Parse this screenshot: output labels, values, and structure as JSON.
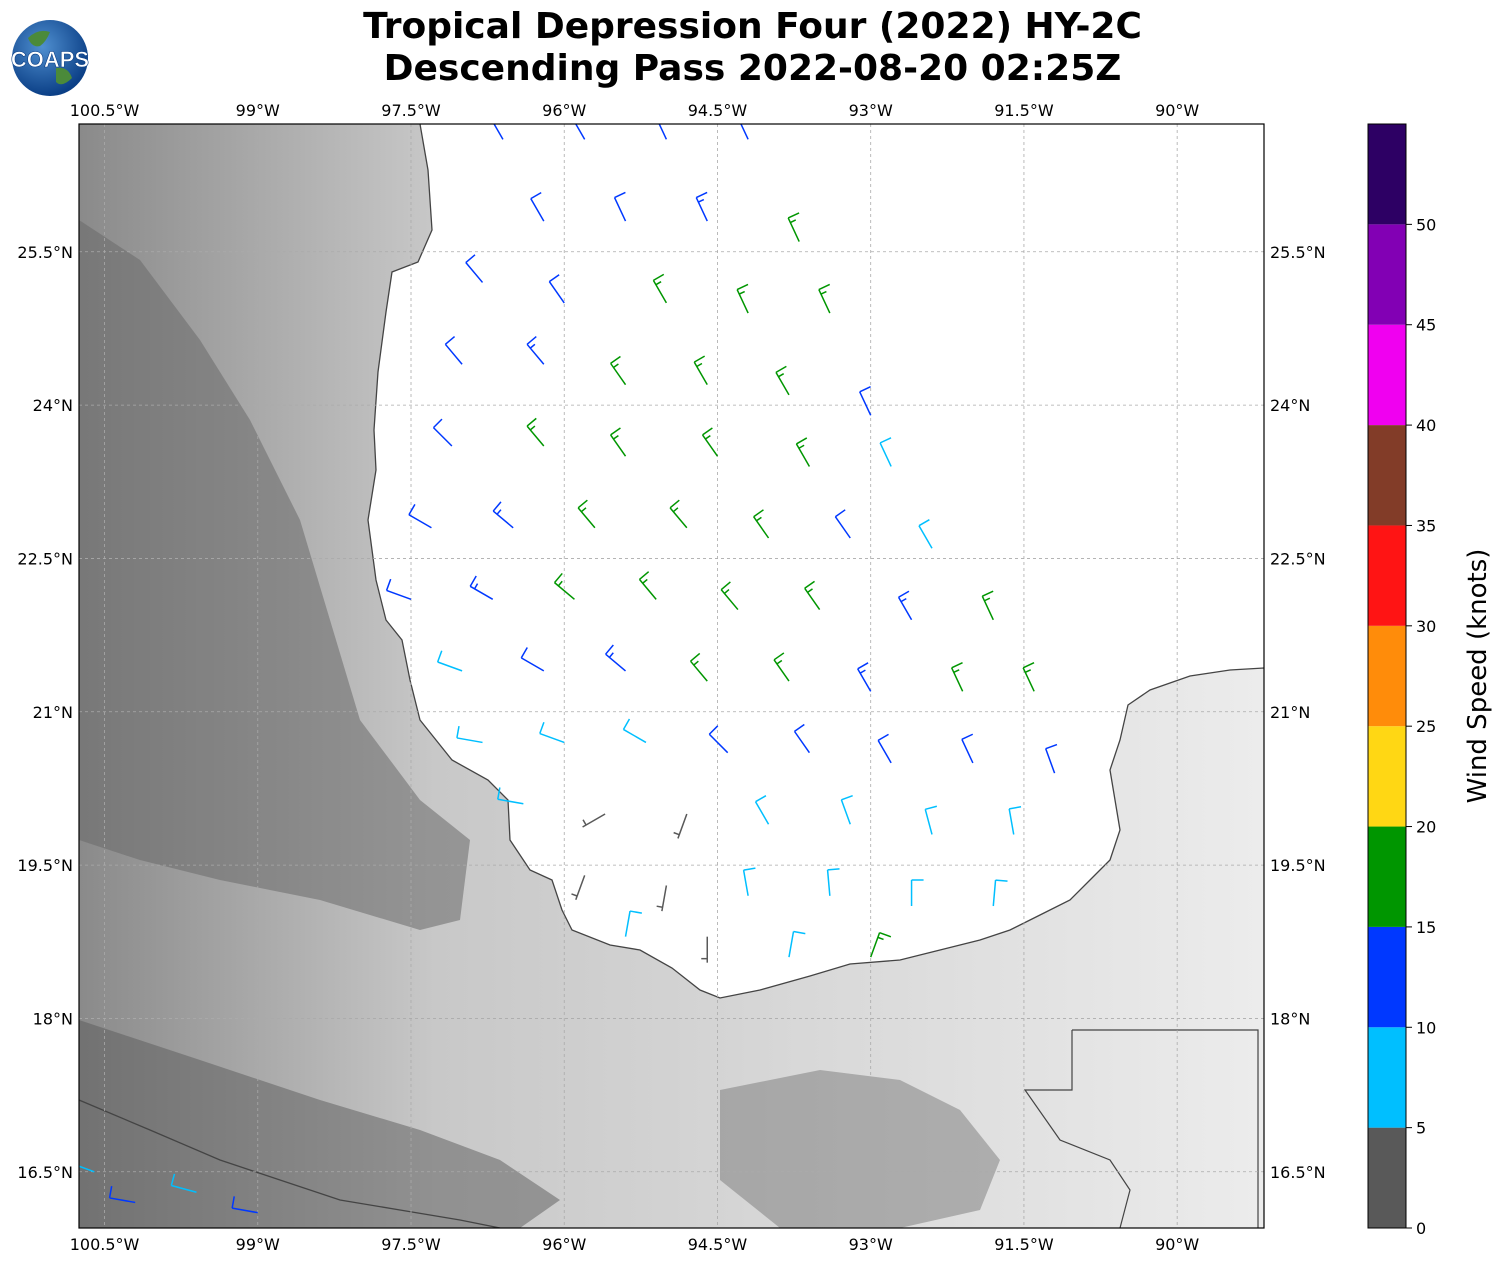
{
  "title": {
    "line1": "Tropical Depression Four (2022) HY-2C",
    "line2": "Descending Pass 2022-08-20 02:25Z"
  },
  "logo": {
    "text": "COAPS"
  },
  "map": {
    "lon_range": [
      -100.75,
      -89.15
    ],
    "lat_range": [
      15.95,
      26.75
    ],
    "lon_ticks": [
      "100.5°W",
      "99°W",
      "97.5°W",
      "96°W",
      "94.5°W",
      "93°W",
      "91.5°W",
      "90°W"
    ],
    "lat_ticks": [
      "25.5°N",
      "24°N",
      "22.5°N",
      "21°N",
      "19.5°N",
      "18°N",
      "16.5°N"
    ],
    "gridlines": true,
    "background": "grayscale terrain"
  },
  "colorbar": {
    "label": "Wind Speed (knots)",
    "ticks": [
      "0",
      "5",
      "10",
      "15",
      "20",
      "25",
      "30",
      "35",
      "40",
      "45",
      "50"
    ],
    "bins": [
      {
        "min": 0,
        "max": 5,
        "color": "#595959"
      },
      {
        "min": 5,
        "max": 10,
        "color": "#00bfff"
      },
      {
        "min": 10,
        "max": 15,
        "color": "#0038ff"
      },
      {
        "min": 15,
        "max": 20,
        "color": "#009600"
      },
      {
        "min": 20,
        "max": 25,
        "color": "#ffd714"
      },
      {
        "min": 25,
        "max": 30,
        "color": "#ff8c0a"
      },
      {
        "min": 30,
        "max": 35,
        "color": "#ff1414"
      },
      {
        "min": 35,
        "max": 40,
        "color": "#823c28"
      },
      {
        "min": 40,
        "max": 45,
        "color": "#f000f0"
      },
      {
        "min": 45,
        "max": 50,
        "color": "#8200b4"
      },
      {
        "min": 50,
        "max": 55,
        "color": "#2d0064"
      }
    ]
  },
  "wind_barbs": {
    "units": "knots",
    "observations": [
      {
        "lon": -96.6,
        "lat": 26.6,
        "speed": 12,
        "dir": 330
      },
      {
        "lon": -95.8,
        "lat": 26.6,
        "speed": 12,
        "dir": 330
      },
      {
        "lon": -95.0,
        "lat": 26.6,
        "speed": 12,
        "dir": 335
      },
      {
        "lon": -94.2,
        "lat": 26.6,
        "speed": 12,
        "dir": 335
      },
      {
        "lon": -96.2,
        "lat": 25.8,
        "speed": 12,
        "dir": 330
      },
      {
        "lon": -95.4,
        "lat": 25.8,
        "speed": 12,
        "dir": 335
      },
      {
        "lon": -94.6,
        "lat": 25.8,
        "speed": 14,
        "dir": 335
      },
      {
        "lon": -93.7,
        "lat": 25.6,
        "speed": 16,
        "dir": 335
      },
      {
        "lon": -96.8,
        "lat": 25.2,
        "speed": 12,
        "dir": 320
      },
      {
        "lon": -96.0,
        "lat": 25.0,
        "speed": 12,
        "dir": 325
      },
      {
        "lon": -95.0,
        "lat": 25.0,
        "speed": 16,
        "dir": 330
      },
      {
        "lon": -94.2,
        "lat": 24.9,
        "speed": 17,
        "dir": 335
      },
      {
        "lon": -93.4,
        "lat": 24.9,
        "speed": 17,
        "dir": 335
      },
      {
        "lon": -97.0,
        "lat": 24.4,
        "speed": 12,
        "dir": 320
      },
      {
        "lon": -96.2,
        "lat": 24.4,
        "speed": 14,
        "dir": 320
      },
      {
        "lon": -95.4,
        "lat": 24.2,
        "speed": 16,
        "dir": 325
      },
      {
        "lon": -94.6,
        "lat": 24.2,
        "speed": 17,
        "dir": 330
      },
      {
        "lon": -93.8,
        "lat": 24.1,
        "speed": 17,
        "dir": 330
      },
      {
        "lon": -93.0,
        "lat": 23.9,
        "speed": 12,
        "dir": 335
      },
      {
        "lon": -97.1,
        "lat": 23.6,
        "speed": 12,
        "dir": 315
      },
      {
        "lon": -96.2,
        "lat": 23.6,
        "speed": 16,
        "dir": 320
      },
      {
        "lon": -95.4,
        "lat": 23.5,
        "speed": 17,
        "dir": 325
      },
      {
        "lon": -94.5,
        "lat": 23.5,
        "speed": 17,
        "dir": 325
      },
      {
        "lon": -93.6,
        "lat": 23.4,
        "speed": 16,
        "dir": 330
      },
      {
        "lon": -92.8,
        "lat": 23.4,
        "speed": 8,
        "dir": 335
      },
      {
        "lon": -97.3,
        "lat": 22.8,
        "speed": 12,
        "dir": 300
      },
      {
        "lon": -96.5,
        "lat": 22.8,
        "speed": 14,
        "dir": 310
      },
      {
        "lon": -95.7,
        "lat": 22.8,
        "speed": 17,
        "dir": 320
      },
      {
        "lon": -94.8,
        "lat": 22.8,
        "speed": 17,
        "dir": 320
      },
      {
        "lon": -94.0,
        "lat": 22.7,
        "speed": 17,
        "dir": 325
      },
      {
        "lon": -93.2,
        "lat": 22.7,
        "speed": 12,
        "dir": 325
      },
      {
        "lon": -92.4,
        "lat": 22.6,
        "speed": 8,
        "dir": 330
      },
      {
        "lon": -97.5,
        "lat": 22.1,
        "speed": 12,
        "dir": 290
      },
      {
        "lon": -96.7,
        "lat": 22.1,
        "speed": 13,
        "dir": 300
      },
      {
        "lon": -95.9,
        "lat": 22.1,
        "speed": 16,
        "dir": 310
      },
      {
        "lon": -95.1,
        "lat": 22.1,
        "speed": 17,
        "dir": 320
      },
      {
        "lon": -94.3,
        "lat": 22.0,
        "speed": 17,
        "dir": 320
      },
      {
        "lon": -93.5,
        "lat": 22.0,
        "speed": 16,
        "dir": 325
      },
      {
        "lon": -92.6,
        "lat": 21.9,
        "speed": 14,
        "dir": 330
      },
      {
        "lon": -91.8,
        "lat": 21.9,
        "speed": 17,
        "dir": 335
      },
      {
        "lon": -97.0,
        "lat": 21.4,
        "speed": 8,
        "dir": 290
      },
      {
        "lon": -96.2,
        "lat": 21.4,
        "speed": 12,
        "dir": 300
      },
      {
        "lon": -95.4,
        "lat": 21.4,
        "speed": 13,
        "dir": 310
      },
      {
        "lon": -94.6,
        "lat": 21.3,
        "speed": 16,
        "dir": 320
      },
      {
        "lon": -93.8,
        "lat": 21.3,
        "speed": 17,
        "dir": 325
      },
      {
        "lon": -93.0,
        "lat": 21.2,
        "speed": 14,
        "dir": 330
      },
      {
        "lon": -92.1,
        "lat": 21.2,
        "speed": 17,
        "dir": 335
      },
      {
        "lon": -91.4,
        "lat": 21.2,
        "speed": 17,
        "dir": 335
      },
      {
        "lon": -96.8,
        "lat": 20.7,
        "speed": 8,
        "dir": 280
      },
      {
        "lon": -96.0,
        "lat": 20.7,
        "speed": 8,
        "dir": 290
      },
      {
        "lon": -95.2,
        "lat": 20.7,
        "speed": 9,
        "dir": 300
      },
      {
        "lon": -94.4,
        "lat": 20.6,
        "speed": 12,
        "dir": 315
      },
      {
        "lon": -93.6,
        "lat": 20.6,
        "speed": 12,
        "dir": 325
      },
      {
        "lon": -92.8,
        "lat": 20.5,
        "speed": 12,
        "dir": 330
      },
      {
        "lon": -92.0,
        "lat": 20.5,
        "speed": 12,
        "dir": 335
      },
      {
        "lon": -91.2,
        "lat": 20.4,
        "speed": 12,
        "dir": 340
      },
      {
        "lon": -96.4,
        "lat": 20.1,
        "speed": 8,
        "dir": 280
      },
      {
        "lon": -95.6,
        "lat": 20.0,
        "speed": 4,
        "dir": 240
      },
      {
        "lon": -94.8,
        "lat": 20.0,
        "speed": 3,
        "dir": 200
      },
      {
        "lon": -94.0,
        "lat": 19.9,
        "speed": 8,
        "dir": 330
      },
      {
        "lon": -93.2,
        "lat": 19.9,
        "speed": 9,
        "dir": 340
      },
      {
        "lon": -92.4,
        "lat": 19.8,
        "speed": 8,
        "dir": 345
      },
      {
        "lon": -91.6,
        "lat": 19.8,
        "speed": 9,
        "dir": 350
      },
      {
        "lon": -95.8,
        "lat": 19.4,
        "speed": 3,
        "dir": 200
      },
      {
        "lon": -95.0,
        "lat": 19.3,
        "speed": 3,
        "dir": 190
      },
      {
        "lon": -94.2,
        "lat": 19.2,
        "speed": 8,
        "dir": 350
      },
      {
        "lon": -93.4,
        "lat": 19.2,
        "speed": 8,
        "dir": 355
      },
      {
        "lon": -92.6,
        "lat": 19.1,
        "speed": 8,
        "dir": 0
      },
      {
        "lon": -91.8,
        "lat": 19.1,
        "speed": 9,
        "dir": 5
      },
      {
        "lon": -95.4,
        "lat": 18.8,
        "speed": 8,
        "dir": 10
      },
      {
        "lon": -94.6,
        "lat": 18.8,
        "speed": 3,
        "dir": 180
      },
      {
        "lon": -93.8,
        "lat": 18.6,
        "speed": 8,
        "dir": 10
      },
      {
        "lon": -93.0,
        "lat": 18.6,
        "speed": 16,
        "dir": 20
      },
      {
        "lon": -100.6,
        "lat": 16.5,
        "speed": 8,
        "dir": 290
      },
      {
        "lon": -100.2,
        "lat": 16.2,
        "speed": 12,
        "dir": 280
      },
      {
        "lon": -99.6,
        "lat": 16.3,
        "speed": 8,
        "dir": 285
      },
      {
        "lon": -99.0,
        "lat": 16.1,
        "speed": 12,
        "dir": 280
      }
    ]
  }
}
